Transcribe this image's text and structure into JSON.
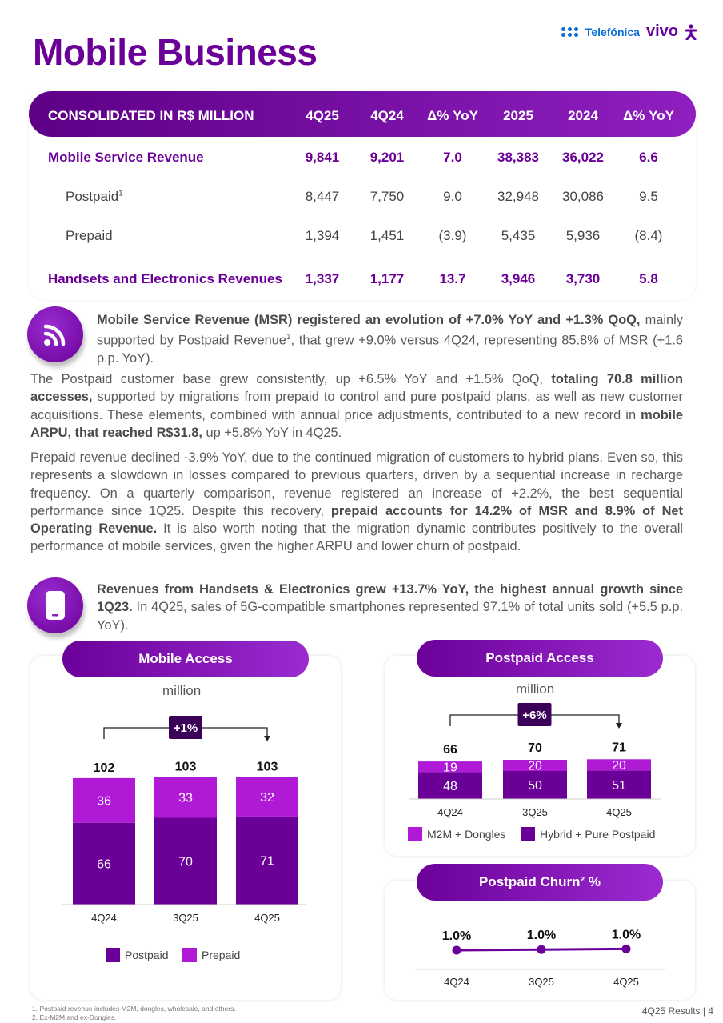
{
  "header": {
    "title": "Mobile Business",
    "logo_telefonica": "Telefónica",
    "logo_vivo": "vivo"
  },
  "table": {
    "header": [
      "CONSOLIDATED IN R$ MILLION",
      "4Q25",
      "4Q24",
      "Δ% YoY",
      "2025",
      "2024",
      "Δ% YoY"
    ],
    "rows": [
      {
        "label": "Mobile Service Revenue",
        "values": [
          "9,841",
          "9,201",
          "7.0",
          "38,383",
          "36,022",
          "6.6"
        ]
      },
      {
        "label": "Postpaid",
        "sup": "1",
        "values": [
          "8,447",
          "7,750",
          "9.0",
          "32,948",
          "30,086",
          "9.5"
        ]
      },
      {
        "label": "Prepaid",
        "values": [
          "1,394",
          "1,451",
          "(3.9)",
          "5,435",
          "5,936",
          "(8.4)"
        ]
      },
      {
        "label": "Handsets and Electronics Revenues",
        "values": [
          "1,337",
          "1,177",
          "13.7",
          "3,946",
          "3,730",
          "5.8"
        ]
      }
    ]
  },
  "paragraphs": {
    "p1_bold": "Mobile Service Revenue (MSR) registered an evolution of +7.0% YoY and +1.3% QoQ,",
    "p1_text_a": " mainly supported by Postpaid Revenue",
    "p1_sup": "1",
    "p1_text_b": ", that grew +9.0% versus 4Q24, representing 85.8% of MSR (+1.6 p.p. YoY).",
    "p2_a": "The Postpaid customer base grew consistently, up +6.5% YoY and +1.5% QoQ, ",
    "p2_b": "totaling 70.8 million accesses,",
    "p2_c": " supported by migrations from prepaid to control and pure postpaid plans, as well as new customer acquisitions. These elements, combined with annual price adjustments, contributed to a new record in ",
    "p2_d": "mobile ARPU, that reached R$31.8,",
    "p2_e": " up +5.8% YoY in 4Q25.",
    "p3_a": "Prepaid revenue declined -3.9% YoY, due to the continued migration of customers to hybrid plans. Even so, this represents a slowdown in losses compared to previous quarters, driven by a sequential increase in recharge frequency. On a quarterly comparison, revenue registered an increase of +2.2%, the best sequential performance since 1Q25. Despite this recovery, ",
    "p3_b": "prepaid accounts for 14.2% of MSR and 8.9% of Net Operating Revenue.",
    "p3_c": " It is also worth noting that the migration dynamic contributes positively to the overall performance of mobile services, given the higher ARPU and lower churn of postpaid.",
    "p4_bold": "Revenues from Handsets & Electronics grew +13.7% YoY, the highest annual growth since 1Q23.",
    "p4_text": " In 4Q25, sales of 5G-compatible smartphones represented 97.1% of total units sold (+5.5 p.p. YoY)."
  },
  "charts_text": {
    "mobile_access": {
      "title": "Mobile Access",
      "unit": "million",
      "growth": "+1%"
    },
    "postpaid_access": {
      "title": "Postpaid Access",
      "unit": "million",
      "growth": "+6%"
    },
    "churn": {
      "title": "Postpaid Churn² %"
    }
  },
  "chart_data": [
    {
      "type": "bar",
      "stacked": true,
      "title": "Mobile Access",
      "unit": "million",
      "categories": [
        "4Q24",
        "3Q25",
        "4Q25"
      ],
      "totals": [
        102,
        103,
        103
      ],
      "series": [
        {
          "name": "Postpaid",
          "values": [
            66,
            70,
            71
          ],
          "color": "#6b0099"
        },
        {
          "name": "Prepaid",
          "values": [
            36,
            33,
            32
          ],
          "color": "#b01ad6"
        }
      ],
      "annotation": "+1%",
      "legend": "bottom"
    },
    {
      "type": "bar",
      "stacked": true,
      "title": "Postpaid Access",
      "unit": "million",
      "categories": [
        "4Q24",
        "3Q25",
        "4Q25"
      ],
      "totals": [
        66,
        70,
        71
      ],
      "series": [
        {
          "name": "Hybrid + Pure Postpaid",
          "values": [
            48,
            50,
            51
          ],
          "color": "#6b0099"
        },
        {
          "name": "M2M + Dongles",
          "values": [
            19,
            20,
            20
          ],
          "color": "#b01ad6"
        }
      ],
      "annotation": "+6%",
      "legend": "bottom"
    },
    {
      "type": "line",
      "title": "Postpaid Churn² %",
      "categories": [
        "4Q24",
        "3Q25",
        "4Q25"
      ],
      "values": [
        1.0,
        1.0,
        1.0
      ],
      "labels": [
        "1.0%",
        "1.0%",
        "1.0%"
      ],
      "color": "#6b0099"
    }
  ],
  "footnotes": [
    "1.  Postpaid revenue includes M2M, dongles, wholesale, and others.",
    "2.  Ex-M2M and ex-Dongles."
  ],
  "page_label": "4Q25 Results |  4"
}
